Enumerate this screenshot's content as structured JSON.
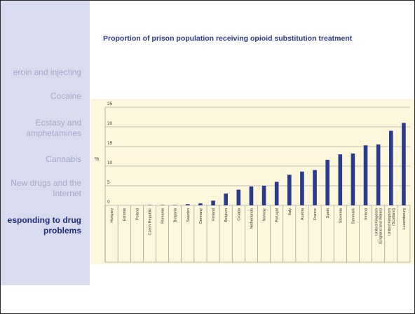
{
  "sidebar": {
    "items": [
      {
        "label_lines": [
          "eroin and injecting"
        ],
        "active": false
      },
      {
        "label_lines": [
          "Cocaine"
        ],
        "active": false
      },
      {
        "label_lines": [
          "Ecstasy and",
          "amphetamines"
        ],
        "active": false
      },
      {
        "label_lines": [
          "Cannabis"
        ],
        "active": false
      },
      {
        "label_lines": [
          "New drugs and the",
          "Internet"
        ],
        "active": false
      },
      {
        "label_lines": [
          "esponding to drug",
          "problems"
        ],
        "active": true
      }
    ]
  },
  "colors": {
    "bar": "#2b3a8c",
    "title": "#2a3a8a",
    "chart_background": "#fbf6dc",
    "sidebar_background": "#d9dbee",
    "sidebar_text": "#a4a8c9",
    "sidebar_active_text": "#1f2f7a"
  },
  "chart_data": {
    "type": "bar",
    "title": "Proportion of prison population receiving opioid substitution treatment",
    "xlabel": "",
    "ylabel": "%",
    "ylim": [
      0,
      25
    ],
    "yticks": [
      0,
      5,
      10,
      15,
      20,
      25
    ],
    "grid": true,
    "categories": [
      "Hungary",
      "Estonia",
      "Poland",
      "Czech Republic",
      "Romania",
      "Bulgaria",
      "Sweden",
      "Germany",
      "Finland",
      "Belgium",
      "Croatia",
      "Netherlands",
      "Norway",
      "Portugal",
      "Italy",
      "Austria",
      "France",
      "Spain",
      "Slovenia",
      "Denmark",
      "Ireland",
      "United Kingdom (England and Wales)",
      "United Kingdom (Scotland)",
      "Luxembourg"
    ],
    "values": [
      0,
      0,
      0,
      0.1,
      0.1,
      0.1,
      0.3,
      0.5,
      1.2,
      3.0,
      4.0,
      4.8,
      5.0,
      6.0,
      7.8,
      8.6,
      9.0,
      11.6,
      13.0,
      13.2,
      15.3,
      15.5,
      19.0,
      21.0
    ]
  }
}
